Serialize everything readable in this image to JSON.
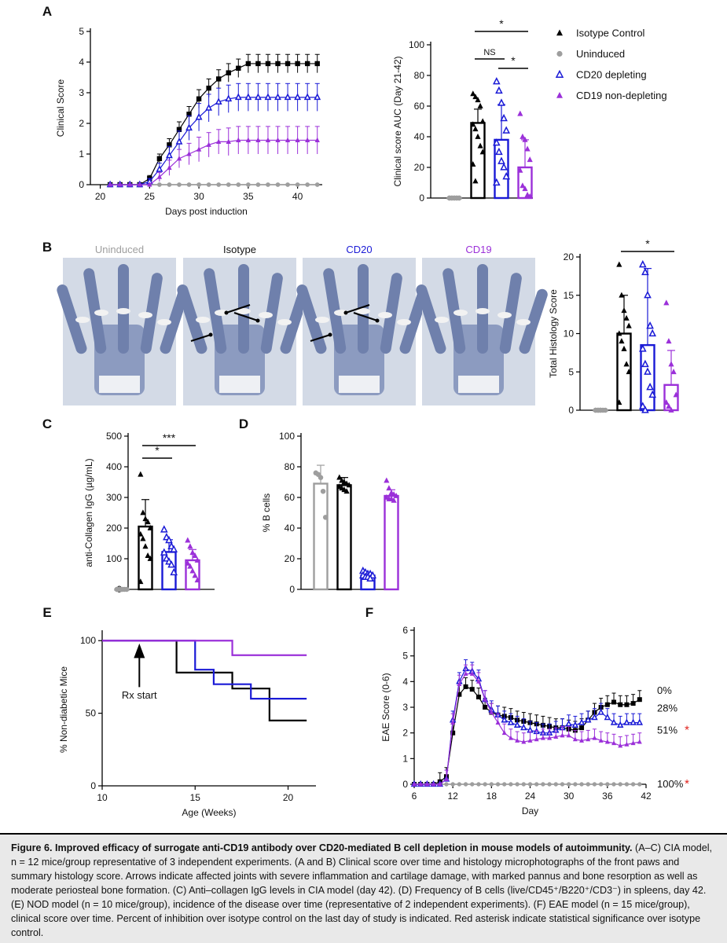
{
  "figure": {
    "colors": {
      "isotype": "#000000",
      "uninduced": "#9e9e9e",
      "cd20": "#1a1ad6",
      "cd19": "#9b30d9",
      "asterisk_red": "#e0201b"
    },
    "icons": {
      "isotype": "filled-triangle",
      "uninduced": "filled-circle",
      "cd20": "open-triangle",
      "cd19": "filled-triangle",
      "nod_arrow": "arrow-up",
      "eae_isotype": "filled-square"
    },
    "panels": {
      "a": "A",
      "b": "B",
      "c": "C",
      "d": "D",
      "e": "E",
      "f": "F"
    },
    "legend": [
      "Isotype Control",
      "Uninduced",
      "CD20 depleting",
      "CD19 non-depleting"
    ],
    "histology_labels": [
      "Uninduced",
      "Isotype",
      "CD20",
      "CD19"
    ]
  },
  "chart_data": [
    {
      "id": "A1",
      "type": "line",
      "xlabel": "Days post induction",
      "ylabel": "Clinical Score",
      "xlim": [
        19,
        42.5
      ],
      "ylim": [
        0,
        5
      ],
      "xticks": [
        20,
        25,
        30,
        35,
        40
      ],
      "yticks": [
        0,
        1,
        2,
        3,
        4,
        5
      ],
      "grid": false,
      "series": [
        {
          "name": "Isotype Control",
          "x": [
            21,
            22,
            23,
            24,
            25,
            26,
            27,
            28,
            29,
            30,
            31,
            32,
            33,
            34,
            35,
            36,
            37,
            38,
            39,
            40,
            41,
            42
          ],
          "y": [
            0,
            0,
            0,
            0,
            0.2,
            0.85,
            1.3,
            1.8,
            2.3,
            2.8,
            3.15,
            3.45,
            3.65,
            3.8,
            3.95,
            3.95,
            3.95,
            3.95,
            3.95,
            3.95,
            3.95,
            3.95
          ],
          "err": [
            0,
            0,
            0,
            0,
            0.1,
            0.15,
            0.2,
            0.25,
            0.25,
            0.3,
            0.3,
            0.3,
            0.3,
            0.3,
            0.3,
            0.3,
            0.3,
            0.3,
            0.3,
            0.3,
            0.3,
            0.3
          ]
        },
        {
          "name": "Uninduced",
          "x": [
            21,
            22,
            23,
            24,
            25,
            26,
            27,
            28,
            29,
            30,
            31,
            32,
            33,
            34,
            35,
            36,
            37,
            38,
            39,
            40,
            41,
            42
          ],
          "y": [
            0,
            0,
            0,
            0,
            0,
            0,
            0,
            0,
            0,
            0,
            0,
            0,
            0,
            0,
            0,
            0,
            0,
            0,
            0,
            0,
            0,
            0
          ],
          "err": []
        },
        {
          "name": "CD20 depleting",
          "x": [
            21,
            22,
            23,
            24,
            25,
            26,
            27,
            28,
            29,
            30,
            31,
            32,
            33,
            34,
            35,
            36,
            37,
            38,
            39,
            40,
            41,
            42
          ],
          "y": [
            0,
            0,
            0,
            0,
            0.1,
            0.5,
            0.95,
            1.4,
            1.85,
            2.2,
            2.5,
            2.7,
            2.8,
            2.85,
            2.85,
            2.85,
            2.85,
            2.85,
            2.85,
            2.85,
            2.85,
            2.85
          ],
          "err": [
            0,
            0,
            0,
            0,
            0.1,
            0.2,
            0.3,
            0.35,
            0.4,
            0.45,
            0.45,
            0.45,
            0.45,
            0.45,
            0.45,
            0.45,
            0.45,
            0.45,
            0.45,
            0.45,
            0.45,
            0.45
          ]
        },
        {
          "name": "CD19 non-depleting",
          "x": [
            21,
            22,
            23,
            24,
            25,
            26,
            27,
            28,
            29,
            30,
            31,
            32,
            33,
            34,
            35,
            36,
            37,
            38,
            39,
            40,
            41,
            42
          ],
          "y": [
            0,
            0,
            0,
            0,
            0,
            0.25,
            0.55,
            0.85,
            1.0,
            1.15,
            1.3,
            1.4,
            1.4,
            1.45,
            1.45,
            1.45,
            1.45,
            1.45,
            1.45,
            1.45,
            1.45,
            1.45
          ],
          "err": [
            0,
            0,
            0,
            0,
            0,
            0.15,
            0.25,
            0.3,
            0.35,
            0.4,
            0.4,
            0.4,
            0.45,
            0.45,
            0.45,
            0.45,
            0.45,
            0.45,
            0.45,
            0.45,
            0.45,
            0.45
          ]
        }
      ]
    },
    {
      "id": "A2",
      "type": "bar",
      "ylabel": "Clinical score AUC (Day 21-42)",
      "ylim": [
        0,
        100
      ],
      "yticks": [
        0,
        20,
        40,
        60,
        80,
        100
      ],
      "categories": [
        "Uninduced",
        "Isotype Control",
        "CD20 depleting",
        "CD19 non-depleting"
      ],
      "values": [
        0,
        49,
        38,
        20
      ],
      "errors": [
        0,
        9,
        23,
        18
      ],
      "points": [
        [
          0,
          0,
          0,
          0,
          0,
          0,
          0,
          0,
          0,
          0
        ],
        [
          68,
          66,
          64,
          60,
          50,
          48,
          45,
          40,
          34,
          30,
          22,
          11
        ],
        [
          76,
          70,
          62,
          52,
          44,
          36,
          30,
          24,
          20,
          14,
          10
        ],
        [
          55,
          40,
          38,
          32,
          25,
          18,
          8,
          6,
          2,
          1
        ]
      ],
      "significance": [
        {
          "from": 1,
          "to": 3,
          "text": "*"
        },
        {
          "from": 1,
          "to": 2,
          "text": "NS"
        },
        {
          "from": 2,
          "to": 3,
          "text": "*"
        }
      ]
    },
    {
      "id": "B",
      "type": "bar",
      "ylabel": "Total Histology Score",
      "ylim": [
        0,
        20
      ],
      "yticks": [
        0,
        5,
        10,
        15,
        20
      ],
      "categories": [
        "Uninduced",
        "Isotype Control",
        "CD20 depleting",
        "CD19 non-depleting"
      ],
      "values": [
        0,
        10,
        8.5,
        3.3
      ],
      "errors": [
        0,
        5,
        10,
        4.5
      ],
      "points": [
        [
          0,
          0,
          0,
          0,
          0,
          0,
          0,
          0
        ],
        [
          19,
          15,
          13,
          12,
          11,
          10,
          9,
          8,
          6,
          5,
          1
        ],
        [
          19,
          18,
          15,
          11,
          10,
          8,
          6,
          5,
          3,
          2,
          0.5,
          0
        ],
        [
          14,
          9,
          6,
          5,
          2,
          1,
          0.5,
          0
        ]
      ],
      "significance": [
        {
          "from": 1,
          "to": 3,
          "text": "*"
        }
      ]
    },
    {
      "id": "C",
      "type": "bar",
      "ylabel": "anti-Collagen IgG (µg/mL)",
      "ylim": [
        0,
        500
      ],
      "yticks": [
        0,
        100,
        200,
        300,
        400,
        500
      ],
      "categories": [
        "Uninduced",
        "Isotype Control",
        "CD20 depleting",
        "CD19 non-depleting"
      ],
      "values": [
        0,
        205,
        122,
        95
      ],
      "errors": [
        0,
        88,
        40,
        35
      ],
      "points": [
        [
          0,
          0,
          0,
          0,
          0,
          0,
          0,
          0
        ],
        [
          375,
          250,
          230,
          220,
          200,
          180,
          165,
          140,
          110,
          100,
          25
        ],
        [
          195,
          170,
          160,
          140,
          130,
          120,
          100,
          90,
          80,
          55
        ],
        [
          160,
          140,
          120,
          110,
          95,
          85,
          75,
          60,
          45,
          30
        ]
      ],
      "significance": [
        {
          "from": 1,
          "to": 2,
          "text": "*"
        },
        {
          "from": 1,
          "to": 3,
          "text": "***"
        }
      ]
    },
    {
      "id": "D",
      "type": "bar",
      "ylabel": "% B cells",
      "ylim": [
        0,
        100
      ],
      "yticks": [
        0,
        20,
        40,
        60,
        80,
        100
      ],
      "categories": [
        "Uninduced",
        "Isotype Control",
        "CD20 depleting",
        "CD19 non-depleting"
      ],
      "values": [
        69,
        68,
        9,
        61
      ],
      "errors": [
        12,
        5,
        2,
        4
      ],
      "points": [
        [
          76,
          75,
          73,
          64,
          47
        ],
        [
          73,
          71,
          70,
          69,
          68,
          67,
          66,
          65,
          64
        ],
        [
          12,
          11,
          10,
          10,
          9,
          9,
          8,
          8,
          7
        ],
        [
          71,
          66,
          63,
          62,
          61,
          60,
          59,
          59,
          58
        ]
      ],
      "significance": []
    },
    {
      "id": "E",
      "type": "line",
      "xlabel": "Age (Weeks)",
      "ylabel": "% Non-diabetic Mice",
      "xlim": [
        10,
        21.5
      ],
      "ylim": [
        0,
        105
      ],
      "xticks": [
        10,
        15,
        20
      ],
      "yticks": [
        0,
        50,
        100
      ],
      "annotation": "Rx start",
      "annotation_x": 12,
      "series": [
        {
          "name": "Isotype Control",
          "x": [
            10,
            14,
            15,
            16,
            17,
            18,
            19,
            21
          ],
          "y": [
            100,
            78,
            78,
            78,
            67,
            67,
            45,
            45
          ]
        },
        {
          "name": "CD20 depleting",
          "x": [
            10,
            14,
            15,
            16,
            17,
            18,
            19,
            21
          ],
          "y": [
            100,
            100,
            80,
            70,
            70,
            60,
            60,
            60
          ]
        },
        {
          "name": "CD19 non-depleting",
          "x": [
            10,
            17,
            21
          ],
          "y": [
            100,
            90,
            90
          ]
        }
      ]
    },
    {
      "id": "F",
      "type": "line",
      "xlabel": "Day",
      "ylabel": "EAE Score (0-6)",
      "xlim": [
        6,
        42
      ],
      "ylim": [
        0,
        6
      ],
      "xticks": [
        6,
        12,
        18,
        24,
        30,
        36,
        42
      ],
      "yticks": [
        0,
        1,
        2,
        3,
        4,
        5,
        6
      ],
      "inhibition": [
        "0%",
        "28%",
        "51%",
        "100%"
      ],
      "asterisk": "*",
      "series": [
        {
          "name": "Isotype Control",
          "x": [
            6,
            7,
            8,
            9,
            10,
            11,
            12,
            13,
            14,
            15,
            16,
            17,
            18,
            19,
            20,
            21,
            22,
            23,
            24,
            25,
            26,
            27,
            28,
            29,
            30,
            31,
            32,
            33,
            34,
            35,
            36,
            37,
            38,
            39,
            40,
            41
          ],
          "y": [
            0,
            0,
            0,
            0,
            0.1,
            0.3,
            2.0,
            3.5,
            3.8,
            3.7,
            3.4,
            3.0,
            2.8,
            2.7,
            2.65,
            2.6,
            2.5,
            2.45,
            2.4,
            2.35,
            2.3,
            2.25,
            2.2,
            2.2,
            2.15,
            2.1,
            2.2,
            2.5,
            2.8,
            3.0,
            3.1,
            3.2,
            3.1,
            3.1,
            3.15,
            3.3
          ]
        },
        {
          "name": "Uninduced",
          "x": [
            6,
            7,
            8,
            9,
            10,
            11,
            12,
            13,
            14,
            15,
            16,
            17,
            18,
            19,
            20,
            21,
            22,
            23,
            24,
            25,
            26,
            27,
            28,
            29,
            30,
            31,
            32,
            33,
            34,
            35,
            36,
            37,
            38,
            39,
            40,
            41
          ],
          "y": [
            0,
            0,
            0,
            0,
            0,
            0,
            0,
            0,
            0,
            0,
            0,
            0,
            0,
            0,
            0,
            0,
            0,
            0,
            0,
            0,
            0,
            0,
            0,
            0,
            0,
            0,
            0,
            0,
            0,
            0,
            0,
            0,
            0,
            0,
            0,
            0
          ]
        },
        {
          "name": "CD20 depleting",
          "x": [
            6,
            7,
            8,
            9,
            10,
            11,
            12,
            13,
            14,
            15,
            16,
            17,
            18,
            19,
            20,
            21,
            22,
            23,
            24,
            25,
            26,
            27,
            28,
            29,
            30,
            31,
            32,
            33,
            34,
            35,
            36,
            37,
            38,
            39,
            40,
            41
          ],
          "y": [
            0,
            0,
            0,
            0,
            0,
            0.2,
            2.5,
            4.0,
            4.5,
            4.4,
            4.1,
            3.3,
            2.9,
            2.7,
            2.5,
            2.4,
            2.3,
            2.2,
            2.1,
            2.05,
            2.0,
            2.0,
            2.1,
            2.2,
            2.35,
            2.3,
            2.4,
            2.5,
            2.6,
            2.8,
            2.6,
            2.4,
            2.3,
            2.4,
            2.4,
            2.4
          ]
        },
        {
          "name": "CD19 non-depleting",
          "x": [
            6,
            7,
            8,
            9,
            10,
            11,
            12,
            13,
            14,
            15,
            16,
            17,
            18,
            19,
            20,
            21,
            22,
            23,
            24,
            25,
            26,
            27,
            28,
            29,
            30,
            31,
            32,
            33,
            34,
            35,
            36,
            37,
            38,
            39,
            40,
            41
          ],
          "y": [
            0,
            0,
            0,
            0,
            0,
            0.2,
            2.4,
            3.9,
            4.3,
            4.3,
            4.0,
            3.3,
            2.8,
            2.4,
            2.0,
            1.8,
            1.7,
            1.65,
            1.7,
            1.75,
            1.8,
            1.8,
            1.85,
            1.9,
            1.9,
            1.75,
            1.7,
            1.75,
            1.8,
            1.7,
            1.65,
            1.6,
            1.5,
            1.55,
            1.6,
            1.65
          ]
        }
      ]
    }
  ],
  "caption": {
    "title": "Figure 6. Improved efficacy of surrogate anti-CD19 antibody over CD20-mediated B cell depletion in mouse models of autoimmunity.",
    "text": "(A–C) CIA model, n = 12 mice/group representative of 3 independent experiments. (A and B) Clinical score over time and histology microphotographs of the front paws and summary histology score. Arrows indicate affected joints with severe inflammation and cartilage damage, with marked pannus and bone resorption as well as moderate periosteal bone formation. (C) Anti–collagen IgG levels in CIA model (day 42). (D) Frequency of B cells (live/CD45⁺/B220⁺/CD3⁻) in spleens, day 42. (E) NOD model (n = 10 mice/group), incidence of the disease over time (representative of 2 independent experiments). (F) EAE model (n = 15 mice/group), clinical score over time. Percent of inhibition over isotype control on the last day of study is indicated. Red asterisk indicate statistical significance over isotype control."
  }
}
